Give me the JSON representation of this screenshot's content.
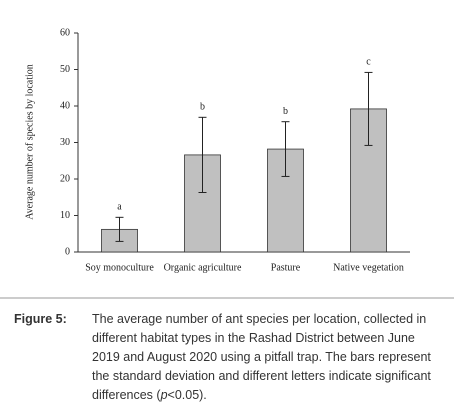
{
  "chart_data": {
    "type": "bar",
    "y_label": "Average number of species by location",
    "categories": [
      "Soy monoculture",
      "Organic agriculture",
      "Pasture",
      "Native vegetation"
    ],
    "values": [
      6.2,
      26.6,
      28.2,
      39.2
    ],
    "errors": [
      3.3,
      10.3,
      7.5,
      10.0
    ],
    "letters": [
      "a",
      "b",
      "b",
      "c"
    ],
    "color": "#c0c0c0",
    "ylim": [
      0,
      60
    ],
    "yticks": [
      0,
      10,
      20,
      30,
      40,
      50,
      60
    ]
  },
  "caption": {
    "label": "Figure 5:",
    "lines": [
      "The average number of ant species per location, collected in",
      "different habitat types in the Rashad District between June",
      "2019 and August 2020 using a pitfall trap. The bars represent",
      "the standard deviation and different letters indicate significant"
    ],
    "last_before": "differences (",
    "last_italic": "p",
    "last_after": "<0.05)."
  }
}
